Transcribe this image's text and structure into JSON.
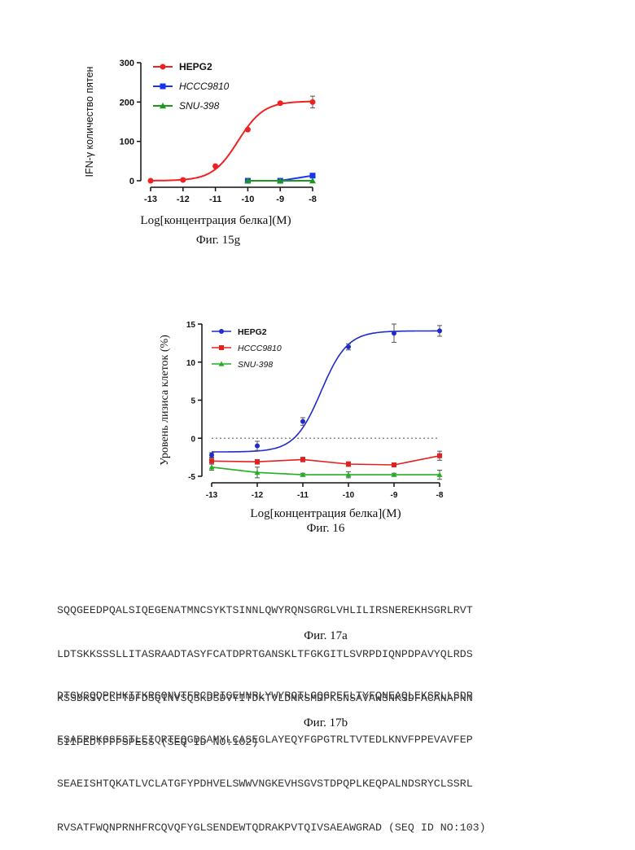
{
  "chart_data": [
    {
      "type": "line",
      "ylabel": "IFN-γ количество пятен",
      "xlabel": "Log[концентрация белка](M)",
      "xticks": [
        -13,
        -12,
        -11,
        -10,
        -9,
        -8
      ],
      "yticks": [
        0,
        100,
        200,
        300
      ],
      "xlim": [
        -13,
        -8
      ],
      "ylim": [
        0,
        300
      ],
      "grid": false,
      "legend_position": "top-left",
      "series": [
        {
          "name": "HEPG2",
          "color": "#ee2222",
          "marker": "circle",
          "legend_style": "bold",
          "x": [
            -13,
            -12,
            -11,
            -10,
            -9,
            -8
          ],
          "y": [
            0,
            2,
            37,
            130,
            197,
            200
          ],
          "err": [
            0,
            0,
            0,
            0,
            0,
            15
          ],
          "curve": {
            "bottom": 0,
            "top": 202,
            "logec50": -10.3,
            "hill": 1.1
          }
        },
        {
          "name": "HCCC9810",
          "color": "#1a33ee",
          "marker": "square",
          "legend_style": "italic",
          "x": [
            -10,
            -9,
            -8
          ],
          "y": [
            0,
            0,
            13
          ],
          "err": [
            0,
            0,
            0
          ],
          "curve": null
        },
        {
          "name": "SNU-398",
          "color": "#1a9a1a",
          "marker": "triangle",
          "legend_style": "italic",
          "x": [
            -10,
            -9,
            -8
          ],
          "y": [
            0,
            0,
            0
          ],
          "err": [
            0,
            0,
            0
          ],
          "curve": null
        }
      ]
    },
    {
      "type": "line",
      "ylabel": "Уровень лизиса клеток (%)",
      "xlabel": "Log[концентрация белка](M)",
      "xticks": [
        -13,
        -12,
        -11,
        -10,
        -9,
        -8
      ],
      "yticks": [
        -5,
        0,
        5,
        10,
        15
      ],
      "xlim": [
        -13,
        -8
      ],
      "ylim": [
        -5,
        15
      ],
      "grid": false,
      "reference_line_y": 0,
      "legend_position": "top-left",
      "series": [
        {
          "name": "HEPG2",
          "color": "#1f2ccc",
          "marker": "circle",
          "legend_style": "bold",
          "x": [
            -13,
            -12,
            -11,
            -10,
            -9,
            -8
          ],
          "y": [
            -2.2,
            -1.0,
            2.2,
            12.0,
            13.8,
            14.1
          ],
          "err": [
            0.3,
            0.6,
            0.5,
            0.4,
            1.2,
            0.7
          ],
          "curve": {
            "bottom": -1.8,
            "top": 14.1,
            "logec50": -10.6,
            "hill": 1.5
          }
        },
        {
          "name": "HCCC9810",
          "color": "#e62020",
          "marker": "square",
          "legend_style": "italic",
          "x": [
            -13,
            -12,
            -11,
            -10,
            -9,
            -8
          ],
          "y": [
            -3.0,
            -3.1,
            -2.8,
            -3.4,
            -3.5,
            -2.3
          ],
          "err": [
            0.4,
            0.3,
            0.3,
            0.3,
            0.2,
            0.6
          ],
          "curve": null
        },
        {
          "name": "SNU-398",
          "color": "#22b022",
          "marker": "triangle",
          "legend_style": "italic",
          "x": [
            -13,
            -12,
            -11,
            -10,
            -9,
            -8
          ],
          "y": [
            -3.8,
            -4.5,
            -4.8,
            -4.8,
            -4.8,
            -4.8
          ],
          "err": [
            0.4,
            0.7,
            0.2,
            0.4,
            0.2,
            0.6
          ],
          "curve": null
        }
      ]
    }
  ],
  "captions": {
    "fig15g": "Фиг. 15g",
    "fig16": "Фиг. 16",
    "fig17a": "Фиг. 17a",
    "fig17b": "Фиг. 17b"
  },
  "seq102_lines": [
    "SQQGEEDPQALSIQEGENATMNCSYKTSINNLQWYRQNSGRGLVHLILIRSNEREKHSGRLRVT",
    "LDTSKKSSSLLITASRAADTASYFCATDPRTGANSKLTFGKGITLSVRPDIQNPDPAVYQLRDS",
    "KSSDKSVCLFTDFDSQTNVSQSKDSDVYITDKTVLDMRSMDFKSNSAVAWSNKSDFACANAFNN",
    "SIIPEDTFFPSPESS (SEQ ID NO:102)"
  ],
  "seq103_lines": [
    "DTGVSQDPRHKITKRGQNVTFRCDPISEHNRLYWYRQTLGQGPEFLTYFQNEAQLEKSRLLSDR",
    "FSAERPKGSFSTLEIQRTEQGDSAMYLCASEGLAYEQYFGPGTRLTVTEDLKNVFPPEVAVFEP",
    "SEAEISHTQKATLVCLATGFYPDHVELSWWVNGKEVHSGVSTDPQPLKEQPALNDSRYCLSSRL",
    "RVSATFWQNPRNHFRCQVQFYGLSENDEWTQDRAKPVTQIVSAEAWGRAD (SEQ ID NO:103)"
  ]
}
